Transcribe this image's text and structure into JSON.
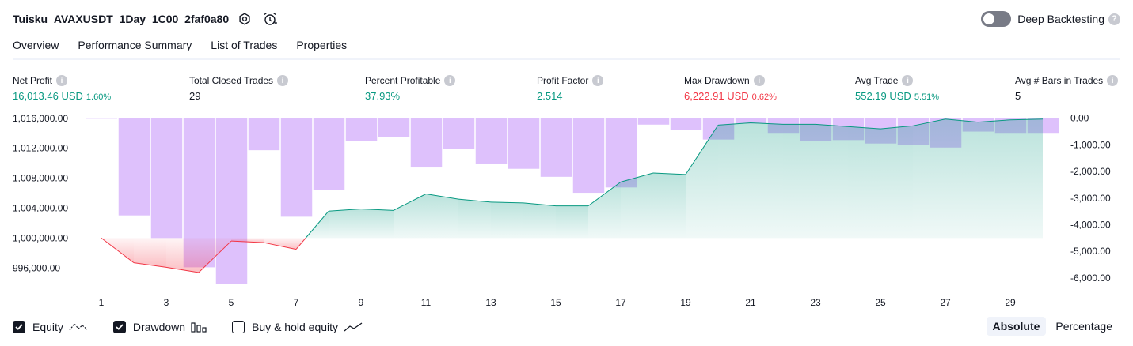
{
  "header": {
    "strategy_title": "Tuisku_AVAXUSDT_1Day_1C00_2faf0a80",
    "settings_icon": "gear-icon",
    "alert_icon": "alarm-clock-plus-icon",
    "deep_backtesting_label": "Deep Backtesting",
    "deep_backtesting_enabled": false
  },
  "tabs": [
    {
      "label": "Overview",
      "active": true
    },
    {
      "label": "Performance Summary",
      "active": false
    },
    {
      "label": "List of Trades",
      "active": false
    },
    {
      "label": "Properties",
      "active": false
    }
  ],
  "metrics": {
    "net_profit": {
      "label": "Net Profit",
      "value": "16,013.46 USD",
      "pct": "1.60%"
    },
    "total_closed_trades": {
      "label": "Total Closed Trades",
      "value": "29"
    },
    "percent_profitable": {
      "label": "Percent Profitable",
      "value": "37.93%"
    },
    "profit_factor": {
      "label": "Profit Factor",
      "value": "2.514"
    },
    "max_drawdown": {
      "label": "Max Drawdown",
      "value": "6,222.91 USD",
      "pct": "0.62%"
    },
    "avg_trade": {
      "label": "Avg Trade",
      "value": "552.19 USD",
      "pct": "5.51%"
    },
    "avg_bars": {
      "label": "Avg # Bars in Trades",
      "value": "5"
    }
  },
  "chart_data": {
    "type": "line",
    "x": [
      1,
      2,
      3,
      4,
      5,
      6,
      7,
      8,
      9,
      10,
      11,
      12,
      13,
      14,
      15,
      16,
      17,
      18,
      19,
      20,
      21,
      22,
      23,
      24,
      25,
      26,
      27,
      28,
      29,
      30
    ],
    "x_ticks": [
      "1",
      "3",
      "5",
      "7",
      "9",
      "11",
      "13",
      "15",
      "17",
      "19",
      "21",
      "23",
      "25",
      "27",
      "29"
    ],
    "left_axis": {
      "ylim": [
        993600,
        1016300
      ],
      "ticks": [
        "1,016,000.00",
        "1,012,000.00",
        "1,008,000.00",
        "1,004,000.00",
        "1,000,000.00",
        "996,000.00"
      ],
      "tick_values": [
        1016000,
        1012000,
        1008000,
        1004000,
        1000000,
        996000
      ]
    },
    "right_axis": {
      "ylim": [
        -6300,
        80
      ],
      "ticks": [
        "0.00",
        "-1,000.00",
        "-2,000.00",
        "-3,000.00",
        "-4,000.00",
        "-5,000.00",
        "-6,000.00"
      ],
      "tick_values": [
        0,
        -1000,
        -2000,
        -3000,
        -4000,
        -5000,
        -6000
      ]
    },
    "baseline": 1000000,
    "series": [
      {
        "name": "Equity",
        "axis": "left",
        "values": [
          1000000,
          996700,
          996100,
          995400,
          999600,
          999400,
          998500,
          1003600,
          1003900,
          1003700,
          1005900,
          1005200,
          1004800,
          1004700,
          1004300,
          1004300,
          1007500,
          1008700,
          1008500,
          1015100,
          1015400,
          1015200,
          1015200,
          1014900,
          1014600,
          1015000,
          1015900,
          1015500,
          1015800,
          1015900
        ]
      },
      {
        "name": "Drawdown",
        "axis": "right",
        "values": [
          0,
          -3650,
          -4500,
          -5600,
          -6222,
          -1200,
          -3700,
          -2700,
          -850,
          -700,
          -1850,
          -1150,
          -1700,
          -1900,
          -2200,
          -2800,
          -2600,
          -240,
          -440,
          -800,
          -200,
          -550,
          -850,
          -820,
          -950,
          -1000,
          -1100,
          -500,
          -550,
          -550
        ]
      }
    ],
    "colors": {
      "equity_positive": "#089981",
      "equity_negative": "#f23645",
      "drawdown": "#d6b2fb"
    }
  },
  "bottom": {
    "equity": {
      "label": "Equity",
      "checked": true
    },
    "drawdown": {
      "label": "Drawdown",
      "checked": true
    },
    "buy_hold": {
      "label": "Buy & hold equity",
      "checked": false
    },
    "modes": [
      {
        "label": "Absolute",
        "selected": true
      },
      {
        "label": "Percentage",
        "selected": false
      }
    ]
  }
}
